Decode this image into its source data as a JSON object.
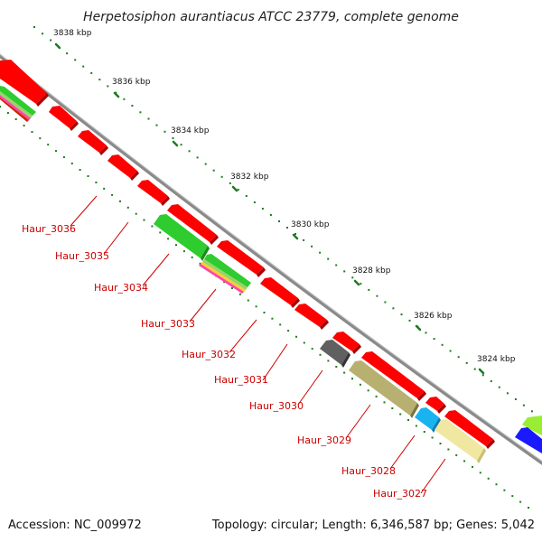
{
  "title": "Herpetosiphon aurantiacus ATCC 23779, complete genome",
  "footer": {
    "accession": "Accession: NC_009972",
    "summary": "Topology: circular; Length: 6,346,587 bp; Genes: 5,042"
  },
  "ticks": [
    "3838 kbp",
    "3836 kbp",
    "3834 kbp",
    "3832 kbp",
    "3830 kbp",
    "3828 kbp",
    "3826 kbp",
    "3824 kbp"
  ],
  "genes": [
    "Haur_3036",
    "Haur_3035",
    "Haur_3034",
    "Haur_3033",
    "Haur_3032",
    "Haur_3031",
    "Haur_3030",
    "Haur_3029",
    "Haur_3028",
    "Haur_3027"
  ],
  "colors": {
    "cds": "#ff0000",
    "cds_dark": "#aa0000",
    "label": "#cc0000",
    "backbone": "#8a8a8a",
    "tick": "#1f7a1f",
    "green_feature": "#2ecc2e",
    "gray_feature": "#606060",
    "olive_feature": "#b8b070",
    "cyan_feature": "#19b4f0",
    "pale_feature": "#f0e8a0",
    "blue_feature": "#1a1aff",
    "lime_feature": "#99ee33"
  }
}
